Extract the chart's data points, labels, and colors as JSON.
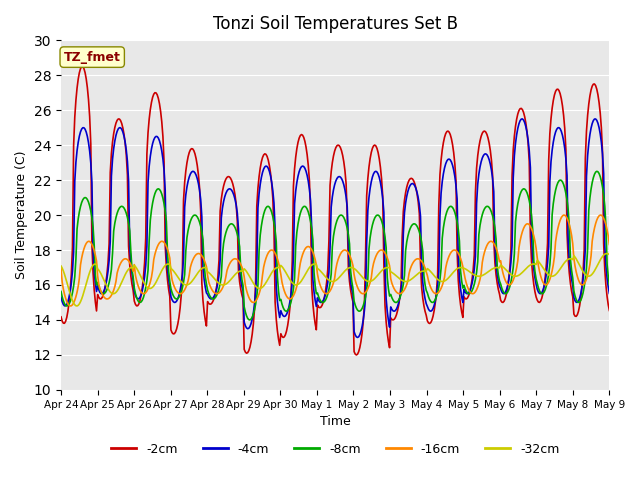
{
  "title": "Tonzi Soil Temperatures Set B",
  "xlabel": "Time",
  "ylabel": "Soil Temperature (C)",
  "ylim": [
    10,
    30
  ],
  "xlim": [
    0,
    15
  ],
  "annotation": "TZ_fmet",
  "series": [
    {
      "label": "-2cm",
      "color": "#cc0000",
      "lw": 1.2
    },
    {
      "label": "-4cm",
      "color": "#0000cc",
      "lw": 1.2
    },
    {
      "label": "-8cm",
      "color": "#00aa00",
      "lw": 1.2
    },
    {
      "label": "-16cm",
      "color": "#ff8800",
      "lw": 1.2
    },
    {
      "label": "-32cm",
      "color": "#cccc00",
      "lw": 1.2
    }
  ],
  "xtick_labels": [
    "Apr 24",
    "Apr 25",
    "Apr 26",
    "Apr 27",
    "Apr 28",
    "Apr 29",
    "Apr 30",
    "May 1",
    "May 2",
    "May 3",
    "May 4",
    "May 5",
    "May 6",
    "May 7",
    "May 8",
    "May 9"
  ],
  "xtick_positions": [
    0,
    1,
    2,
    3,
    4,
    5,
    6,
    7,
    8,
    9,
    10,
    11,
    12,
    13,
    14,
    15
  ]
}
